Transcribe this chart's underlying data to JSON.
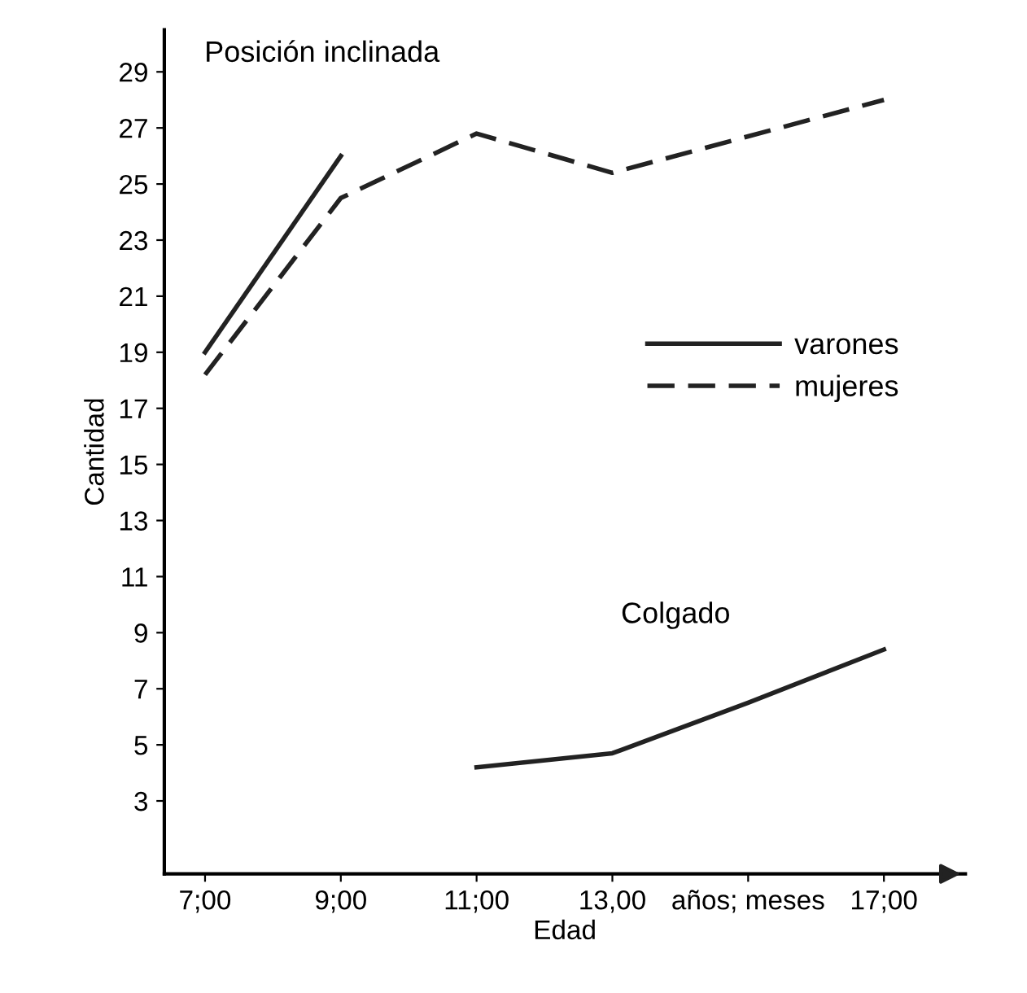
{
  "chart_data": {
    "type": "line",
    "xlabel": "Edad",
    "ylabel": "Cantidad",
    "categories": [
      "7;00",
      "9;00",
      "11;00",
      "13,00",
      "años; meses",
      "17;00"
    ],
    "ylim": [
      0.4,
      30.5
    ],
    "yticks": [
      3,
      5,
      7,
      9,
      11,
      13,
      15,
      17,
      19,
      21,
      23,
      25,
      27,
      29
    ],
    "series": [
      {
        "name": "varones",
        "color": "#222222",
        "line_style": "solid",
        "values": [
          19,
          26,
          null,
          null,
          null,
          null
        ]
      },
      {
        "name": "mujeres",
        "color": "#222222",
        "line_style": "dashed",
        "values": [
          18.2,
          24.5,
          26.8,
          25.4,
          26.7,
          28
        ]
      },
      {
        "color": "#222222",
        "line_style": "solid",
        "values": [
          null,
          null,
          4.2,
          4.7,
          6.5,
          8.4
        ]
      }
    ],
    "annotations": [
      "Posición inclinada",
      "Colgado"
    ],
    "legend": "right",
    "grid": false,
    "marker": "none"
  }
}
